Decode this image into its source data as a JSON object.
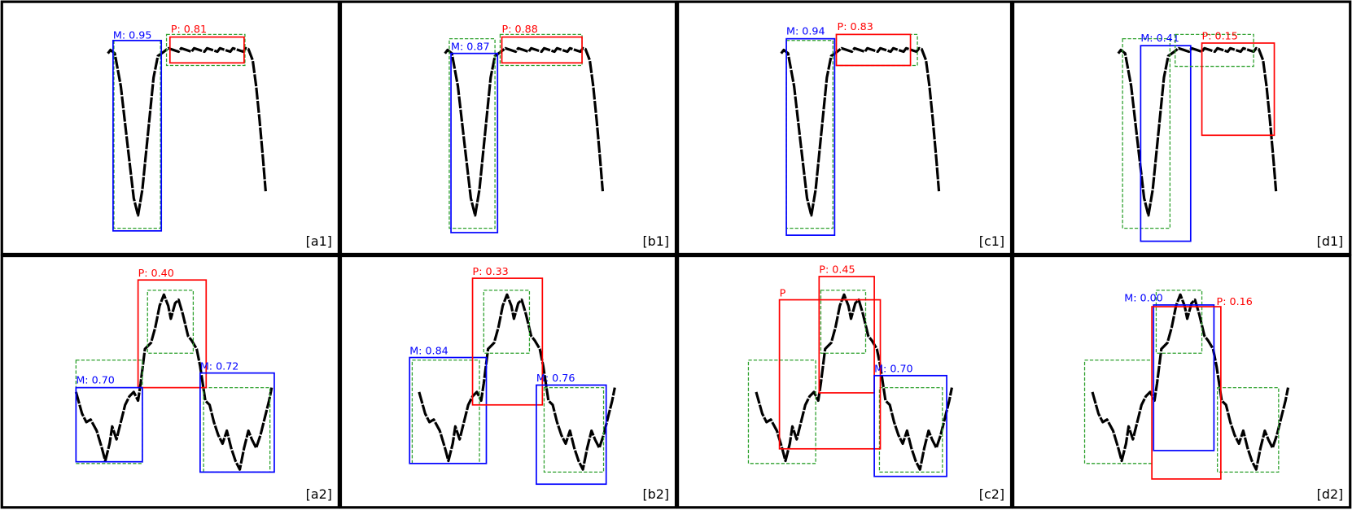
{
  "panels": [
    {
      "label": "[a1]",
      "box_labels": [
        "M: 0.95",
        "P: 0.81"
      ]
    },
    {
      "label": "[b1]",
      "box_labels": [
        "M: 0.87",
        "P: 0.88"
      ]
    },
    {
      "label": "[c1]",
      "box_labels": [
        "M: 0.94",
        "P: 0.83"
      ]
    },
    {
      "label": "[d1]",
      "box_labels": [
        "M: 0.41",
        "P: 0.15"
      ]
    },
    {
      "label": "[a2]",
      "box_labels": [
        "P: 0.40",
        "M: 0.70",
        "M: 0.72"
      ]
    },
    {
      "label": "[b2]",
      "box_labels": [
        "M: 0.84",
        "P: 0.33",
        "M: 0.76"
      ]
    },
    {
      "label": "[c2]",
      "box_labels": [
        "P",
        "P: 0.45",
        "M: 0.70"
      ]
    },
    {
      "label": "[d2]",
      "box_labels": [
        "M: 0.00",
        "P: 0.16"
      ]
    }
  ]
}
